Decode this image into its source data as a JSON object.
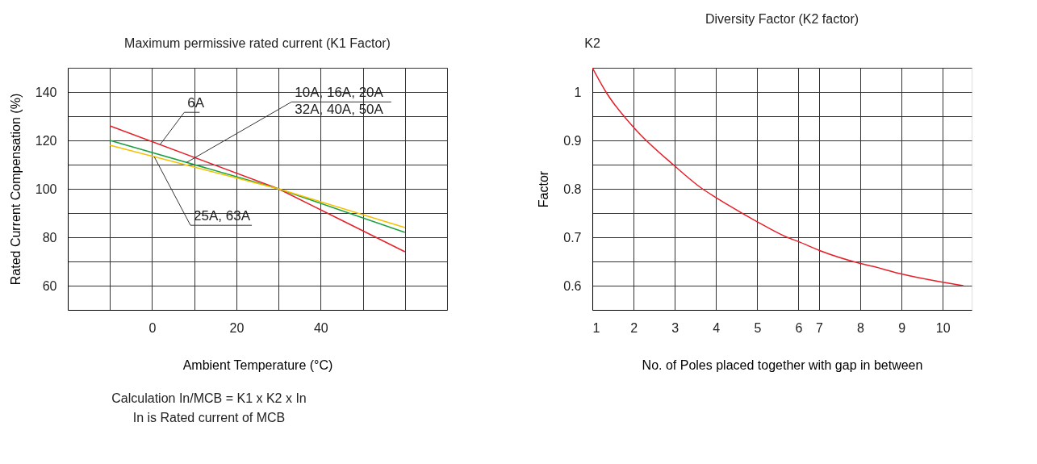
{
  "chart_data": [
    {
      "type": "line",
      "title": "Maximum permissive rated current (K1 Factor)",
      "xlabel": "Ambient Temperature (°C)",
      "ylabel": "Rated Current Compensation (%)",
      "xlim": [
        -20,
        70
      ],
      "xticks": [
        {
          "value": -10,
          "label": null
        },
        0,
        {
          "value": 10,
          "label": null
        },
        20,
        {
          "value": 30,
          "label": null
        },
        40,
        {
          "value": 50,
          "label": null
        },
        {
          "value": 60,
          "label": null
        },
        {
          "value": 70,
          "label": null
        }
      ],
      "ylim": [
        50,
        150
      ],
      "yticks": [
        60,
        {
          "value": 70,
          "label": null
        },
        80,
        {
          "value": 90,
          "label": null
        },
        100,
        {
          "value": 110,
          "label": null
        },
        120,
        {
          "value": 130,
          "label": null
        },
        140,
        {
          "value": 150,
          "label": null
        }
      ],
      "grid": true,
      "legend": false,
      "marker": "none",
      "line_style": "solid",
      "series": [
        {
          "name": "6A",
          "color": "#e8202a",
          "x": [
            -10,
            30,
            45,
            60
          ],
          "values": [
            126,
            100,
            87,
            74
          ]
        },
        {
          "name": "10A, 16A, 20A\n32A, 40A, 50A",
          "color": "#1aa040",
          "x": [
            -10,
            30,
            60
          ],
          "values": [
            120,
            100,
            82
          ]
        },
        {
          "name": "25A, 63A",
          "color": "#f5c000",
          "x": [
            -10,
            30,
            60
          ],
          "values": [
            118,
            100,
            84
          ]
        }
      ],
      "annotations": [
        "Calculation In/MCB = K1 x K2 x In",
        "In is Rated current of MCB"
      ]
    },
    {
      "type": "line",
      "title": "Diversity Factor (K2 factor)",
      "xlabel": "No. of Poles placed together with gap in between",
      "ylabel": "Factor",
      "xlim": [
        1,
        10.2
      ],
      "xticks": [
        1,
        2,
        3,
        4,
        5,
        6,
        {
          "value": 6.5,
          "label": "7"
        },
        {
          "value": 7.5,
          "label": "8"
        },
        {
          "value": 8.5,
          "label": "9"
        },
        {
          "value": 9.5,
          "label": "10"
        }
      ],
      "ylim": [
        0.55,
        1.05
      ],
      "yticks": [
        0.6,
        {
          "value": 0.65,
          "label": null
        },
        0.7,
        {
          "value": 0.75,
          "label": null
        },
        0.8,
        {
          "value": 0.85,
          "label": null
        },
        0.9,
        {
          "value": 0.95,
          "label": null
        },
        1,
        {
          "value": 1.05,
          "label": null
        }
      ],
      "grid": true,
      "legend": false,
      "marker": "none",
      "line_style": "solid",
      "series": [
        {
          "color": "#e8202a",
          "x": [
            1,
            1.33,
            2,
            3,
            3.67,
            4,
            5,
            5.72,
            6,
            6.5,
            7.5,
            7.8,
            8.5,
            9.5,
            10
          ],
          "values": [
            1.05,
            1.0,
            0.927,
            0.847,
            0.8,
            0.782,
            0.732,
            0.7,
            0.691,
            0.673,
            0.646,
            0.64,
            0.624,
            0.607,
            0.6
          ]
        }
      ],
      "annotations": [
        "K2"
      ]
    }
  ]
}
